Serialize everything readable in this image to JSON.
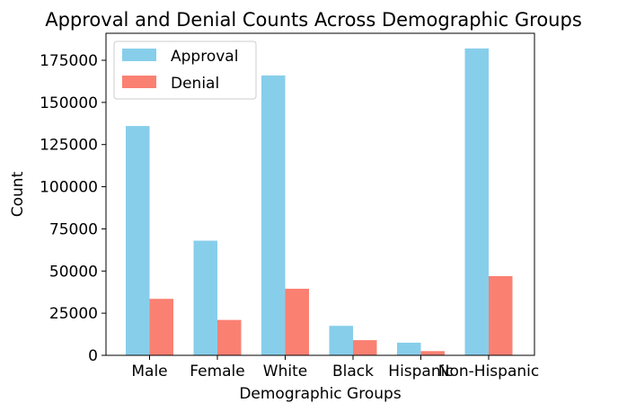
{
  "chart_data": {
    "type": "bar",
    "title": "Approval and Denial Counts Across Demographic Groups",
    "xlabel": "Demographic Groups",
    "ylabel": "Count",
    "categories": [
      "Male",
      "Female",
      "White",
      "Black",
      "Hispanic",
      "Non-Hispanic"
    ],
    "series": [
      {
        "name": "Approval",
        "color": "#87CEEB",
        "values": [
          136000,
          68000,
          166000,
          17500,
          7500,
          182000
        ]
      },
      {
        "name": "Denial",
        "color": "#FA8072",
        "values": [
          33500,
          21000,
          39500,
          9000,
          2500,
          47000
        ]
      }
    ],
    "ylim": [
      0,
      191000
    ],
    "yticks": [
      0,
      25000,
      50000,
      75000,
      100000,
      125000,
      150000,
      175000
    ],
    "ytick_labels": [
      "0",
      "25000",
      "50000",
      "75000",
      "100000",
      "125000",
      "150000",
      "175000"
    ],
    "grid": false,
    "legend_position": "top-left"
  }
}
